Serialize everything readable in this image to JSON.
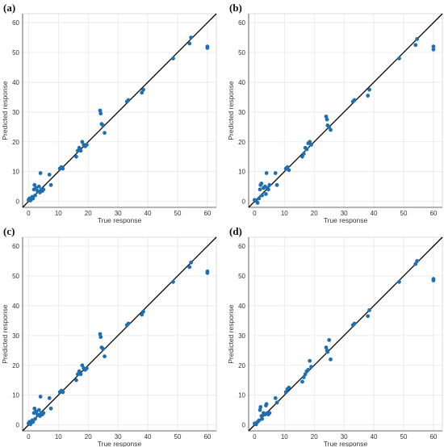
{
  "colors": {
    "points": "#1f6fb2",
    "reference_line": "#000000",
    "grid": "#e6e6e6"
  },
  "chart_data": [
    {
      "type": "scatter",
      "panel_label": "(a)",
      "xlabel": "True response",
      "ylabel": "Predicted response",
      "xlim": [
        -2,
        63
      ],
      "ylim": [
        -2,
        63
      ],
      "xticks": [
        0,
        10,
        20,
        30,
        40,
        50,
        60
      ],
      "yticks": [
        0,
        10,
        20,
        30,
        40,
        50,
        60
      ],
      "grid": true,
      "reference_line": "y = x",
      "points": [
        [
          0,
          0.5
        ],
        [
          0.3,
          1
        ],
        [
          0.6,
          0.3
        ],
        [
          1,
          0.8
        ],
        [
          1.2,
          1.5
        ],
        [
          1.5,
          1
        ],
        [
          1.8,
          4
        ],
        [
          2,
          5.5
        ],
        [
          2.2,
          2
        ],
        [
          2.5,
          4.5
        ],
        [
          3,
          3.5
        ],
        [
          3.5,
          5
        ],
        [
          3.8,
          3
        ],
        [
          4,
          9.5
        ],
        [
          4.3,
          4
        ],
        [
          4.6,
          3.5
        ],
        [
          5,
          4
        ],
        [
          7,
          9
        ],
        [
          7.5,
          5.5
        ],
        [
          10.5,
          11
        ],
        [
          11,
          11.5
        ],
        [
          11.5,
          11
        ],
        [
          16,
          15
        ],
        [
          16.5,
          17
        ],
        [
          17,
          18
        ],
        [
          17.5,
          17
        ],
        [
          18,
          20
        ],
        [
          18.5,
          19
        ],
        [
          19,
          18.5
        ],
        [
          19.5,
          19
        ],
        [
          24,
          30.5
        ],
        [
          24.2,
          29.5
        ],
        [
          24.5,
          26
        ],
        [
          25,
          25.5
        ],
        [
          25.5,
          23
        ],
        [
          33,
          33.5
        ],
        [
          33.5,
          34
        ],
        [
          38,
          36.5
        ],
        [
          38.5,
          37.5
        ],
        [
          48.5,
          48
        ],
        [
          54,
          53
        ],
        [
          54.5,
          55
        ],
        [
          60,
          52
        ],
        [
          60,
          51.5
        ]
      ]
    },
    {
      "type": "scatter",
      "panel_label": "(b)",
      "xlabel": "True response",
      "ylabel": "Predicted response",
      "xlim": [
        -2,
        63
      ],
      "ylim": [
        -2,
        63
      ],
      "xticks": [
        0,
        10,
        20,
        30,
        40,
        50,
        60
      ],
      "yticks": [
        0,
        10,
        20,
        30,
        40,
        50,
        60
      ],
      "grid": true,
      "reference_line": "y = x",
      "points": [
        [
          0,
          0.5
        ],
        [
          0.5,
          0.2
        ],
        [
          1,
          -0.5
        ],
        [
          1.5,
          1
        ],
        [
          1.8,
          4
        ],
        [
          2,
          5.5
        ],
        [
          2.3,
          6
        ],
        [
          2.5,
          2
        ],
        [
          3,
          4.5
        ],
        [
          3.5,
          5
        ],
        [
          3.8,
          2.5
        ],
        [
          4,
          9.5
        ],
        [
          4.3,
          4.5
        ],
        [
          4.6,
          4
        ],
        [
          5,
          5.5
        ],
        [
          7,
          9.5
        ],
        [
          7.5,
          5.5
        ],
        [
          10.5,
          11
        ],
        [
          11,
          11.5
        ],
        [
          11.5,
          10.5
        ],
        [
          16,
          15
        ],
        [
          16.5,
          16
        ],
        [
          17,
          18
        ],
        [
          17.5,
          17.5
        ],
        [
          18,
          19.5
        ],
        [
          18.5,
          20
        ],
        [
          19,
          19
        ],
        [
          24,
          28.5
        ],
        [
          24.3,
          27.5
        ],
        [
          24.5,
          25.5
        ],
        [
          25,
          25
        ],
        [
          25.5,
          24
        ],
        [
          33,
          33.5
        ],
        [
          33.5,
          34
        ],
        [
          38,
          35.5
        ],
        [
          38.5,
          37.5
        ],
        [
          48.5,
          48
        ],
        [
          54,
          52.5
        ],
        [
          54.5,
          54.5
        ],
        [
          60,
          52
        ],
        [
          60,
          51
        ]
      ]
    },
    {
      "type": "scatter",
      "panel_label": "(c)",
      "xlabel": "True response",
      "ylabel": "Predicted response",
      "xlim": [
        -2,
        63
      ],
      "ylim": [
        -2,
        63
      ],
      "xticks": [
        0,
        10,
        20,
        30,
        40,
        50,
        60
      ],
      "yticks": [
        0,
        10,
        20,
        30,
        40,
        50,
        60
      ],
      "grid": true,
      "reference_line": "y = x",
      "points": [
        [
          0,
          0.5
        ],
        [
          0.3,
          1
        ],
        [
          0.6,
          0.2
        ],
        [
          1,
          0.8
        ],
        [
          1.2,
          1.5
        ],
        [
          1.5,
          1
        ],
        [
          1.8,
          4
        ],
        [
          2,
          5.5
        ],
        [
          2.2,
          2
        ],
        [
          2.5,
          4.5
        ],
        [
          3,
          3.5
        ],
        [
          3.5,
          5
        ],
        [
          3.8,
          3
        ],
        [
          4,
          9.5
        ],
        [
          4.3,
          4
        ],
        [
          4.6,
          3.5
        ],
        [
          5,
          4
        ],
        [
          7,
          9
        ],
        [
          7.5,
          5.5
        ],
        [
          10.5,
          11
        ],
        [
          11,
          11.5
        ],
        [
          11.5,
          11
        ],
        [
          16,
          15
        ],
        [
          16.5,
          17
        ],
        [
          17,
          18
        ],
        [
          17.5,
          17
        ],
        [
          18,
          20
        ],
        [
          18.5,
          19
        ],
        [
          19,
          18.5
        ],
        [
          19.5,
          19
        ],
        [
          24,
          30.5
        ],
        [
          24.2,
          29.5
        ],
        [
          24.5,
          26
        ],
        [
          25,
          25.5
        ],
        [
          25.5,
          23
        ],
        [
          33,
          33.5
        ],
        [
          33.5,
          34
        ],
        [
          38,
          37
        ],
        [
          38.5,
          38
        ],
        [
          48.5,
          48
        ],
        [
          54,
          53
        ],
        [
          54.5,
          54.5
        ],
        [
          60,
          51.5
        ],
        [
          60,
          51
        ]
      ]
    },
    {
      "type": "scatter",
      "panel_label": "(d)",
      "xlabel": "True response",
      "ylabel": "Predicted response",
      "xlim": [
        -2,
        63
      ],
      "ylim": [
        -2,
        63
      ],
      "xticks": [
        0,
        10,
        20,
        30,
        40,
        50,
        60
      ],
      "yticks": [
        0,
        10,
        20,
        30,
        40,
        50,
        60
      ],
      "grid": true,
      "reference_line": "y = x",
      "points": [
        [
          0,
          0.5
        ],
        [
          0.5,
          0.2
        ],
        [
          1,
          1
        ],
        [
          1.5,
          1.5
        ],
        [
          1.8,
          5
        ],
        [
          2,
          6
        ],
        [
          2.3,
          3
        ],
        [
          2.5,
          2
        ],
        [
          3,
          4
        ],
        [
          3.5,
          3.5
        ],
        [
          3.8,
          6.5
        ],
        [
          4,
          7
        ],
        [
          4.3,
          4
        ],
        [
          4.6,
          3.5
        ],
        [
          5,
          4
        ],
        [
          7,
          9
        ],
        [
          7.5,
          7.5
        ],
        [
          10.5,
          11
        ],
        [
          11,
          12
        ],
        [
          11.5,
          12.5
        ],
        [
          16,
          14.5
        ],
        [
          16.5,
          16
        ],
        [
          17,
          17
        ],
        [
          17.5,
          18
        ],
        [
          18,
          18.5
        ],
        [
          18.5,
          21.5
        ],
        [
          19,
          19.5
        ],
        [
          24,
          26
        ],
        [
          24.3,
          25
        ],
        [
          24.5,
          24.5
        ],
        [
          25,
          28.5
        ],
        [
          25.5,
          22
        ],
        [
          33,
          33.5
        ],
        [
          33.5,
          34
        ],
        [
          38,
          36.5
        ],
        [
          38.5,
          38.5
        ],
        [
          48.5,
          48
        ],
        [
          54,
          54
        ],
        [
          54.5,
          55
        ],
        [
          60,
          49
        ],
        [
          60,
          48.5
        ]
      ]
    }
  ]
}
